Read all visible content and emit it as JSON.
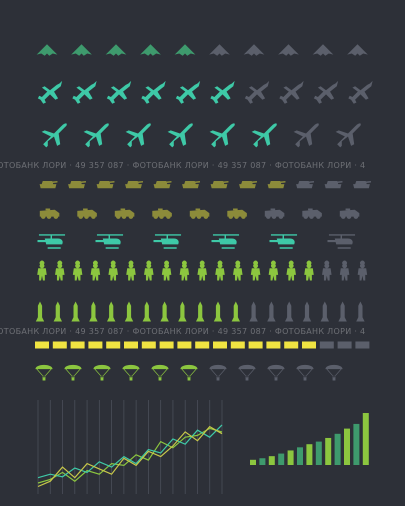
{
  "watermark": {
    "line1": "ФОТОБАНК ЛОРИ · 49 357 087 · ФОТОБАНК ЛОРИ · 49 357 087 · ФОТОБАНК ЛОРИ · 4",
    "line2": "ФОТОБАНК ЛОРИ · 49 357 087 · ФОТОБАНК ЛОРИ · 49 357 087 · ФОТОБАНК ЛОРИ · 4"
  },
  "colors": {
    "background": "#2d3038",
    "inactive": "#5b5f6b",
    "teal": "#3ec9a7",
    "green": "#3e9a6d",
    "olive": "#8c8b3a",
    "lime": "#8cc63f",
    "yellow": "#f0e442",
    "chart_line_1": "#8cc63f",
    "chart_line_2": "#3ec9a7",
    "chart_line_3": "#c8c84a"
  },
  "icon_rows": [
    {
      "icon": "stealth-bomber-icon",
      "active": 5,
      "total": 10,
      "color": "green"
    },
    {
      "icon": "fighter-jet-icon",
      "active": 6,
      "total": 10,
      "color": "teal"
    },
    {
      "icon": "airliner-icon",
      "active": 6,
      "total": 8,
      "color": "teal"
    },
    {
      "icon": "tank-icon",
      "active": 9,
      "total": 12,
      "color": "olive"
    },
    {
      "icon": "armored-vehicle-icon",
      "active": 6,
      "total": 9,
      "color": "olive"
    },
    {
      "icon": "helicopter-icon",
      "active": 5,
      "total": 6,
      "color": "teal"
    },
    {
      "icon": "soldier-icon",
      "active": 16,
      "total": 19,
      "color": "lime"
    },
    {
      "icon": "missile-icon",
      "active": 12,
      "total": 19,
      "color": "lime"
    },
    {
      "icon": "ammo-block-icon",
      "active": 16,
      "total": 19,
      "color": "yellow"
    },
    {
      "icon": "paratrooper-icon",
      "active": 6,
      "total": 11,
      "color": "lime"
    }
  ],
  "line_chart": {
    "type": "line",
    "x_count": 16,
    "ylim": [
      0,
      100
    ],
    "series": [
      {
        "values": [
          8,
          12,
          20,
          10,
          22,
          18,
          30,
          28,
          40,
          34,
          55,
          48,
          60,
          62,
          70,
          66
        ],
        "color": "chart_line_1"
      },
      {
        "values": [
          14,
          18,
          15,
          25,
          20,
          32,
          26,
          38,
          30,
          46,
          42,
          58,
          52,
          68,
          60,
          74
        ],
        "color": "chart_line_2"
      },
      {
        "values": [
          4,
          10,
          26,
          14,
          30,
          24,
          18,
          36,
          28,
          44,
          38,
          50,
          66,
          56,
          72,
          64
        ],
        "color": "chart_line_3"
      }
    ]
  },
  "bar_chart": {
    "type": "bar",
    "ylim": [
      0,
      100
    ],
    "values": [
      10,
      13,
      17,
      22,
      28,
      34,
      40,
      45,
      52,
      60,
      70,
      79,
      100
    ],
    "colors": [
      "lime",
      "green"
    ]
  }
}
